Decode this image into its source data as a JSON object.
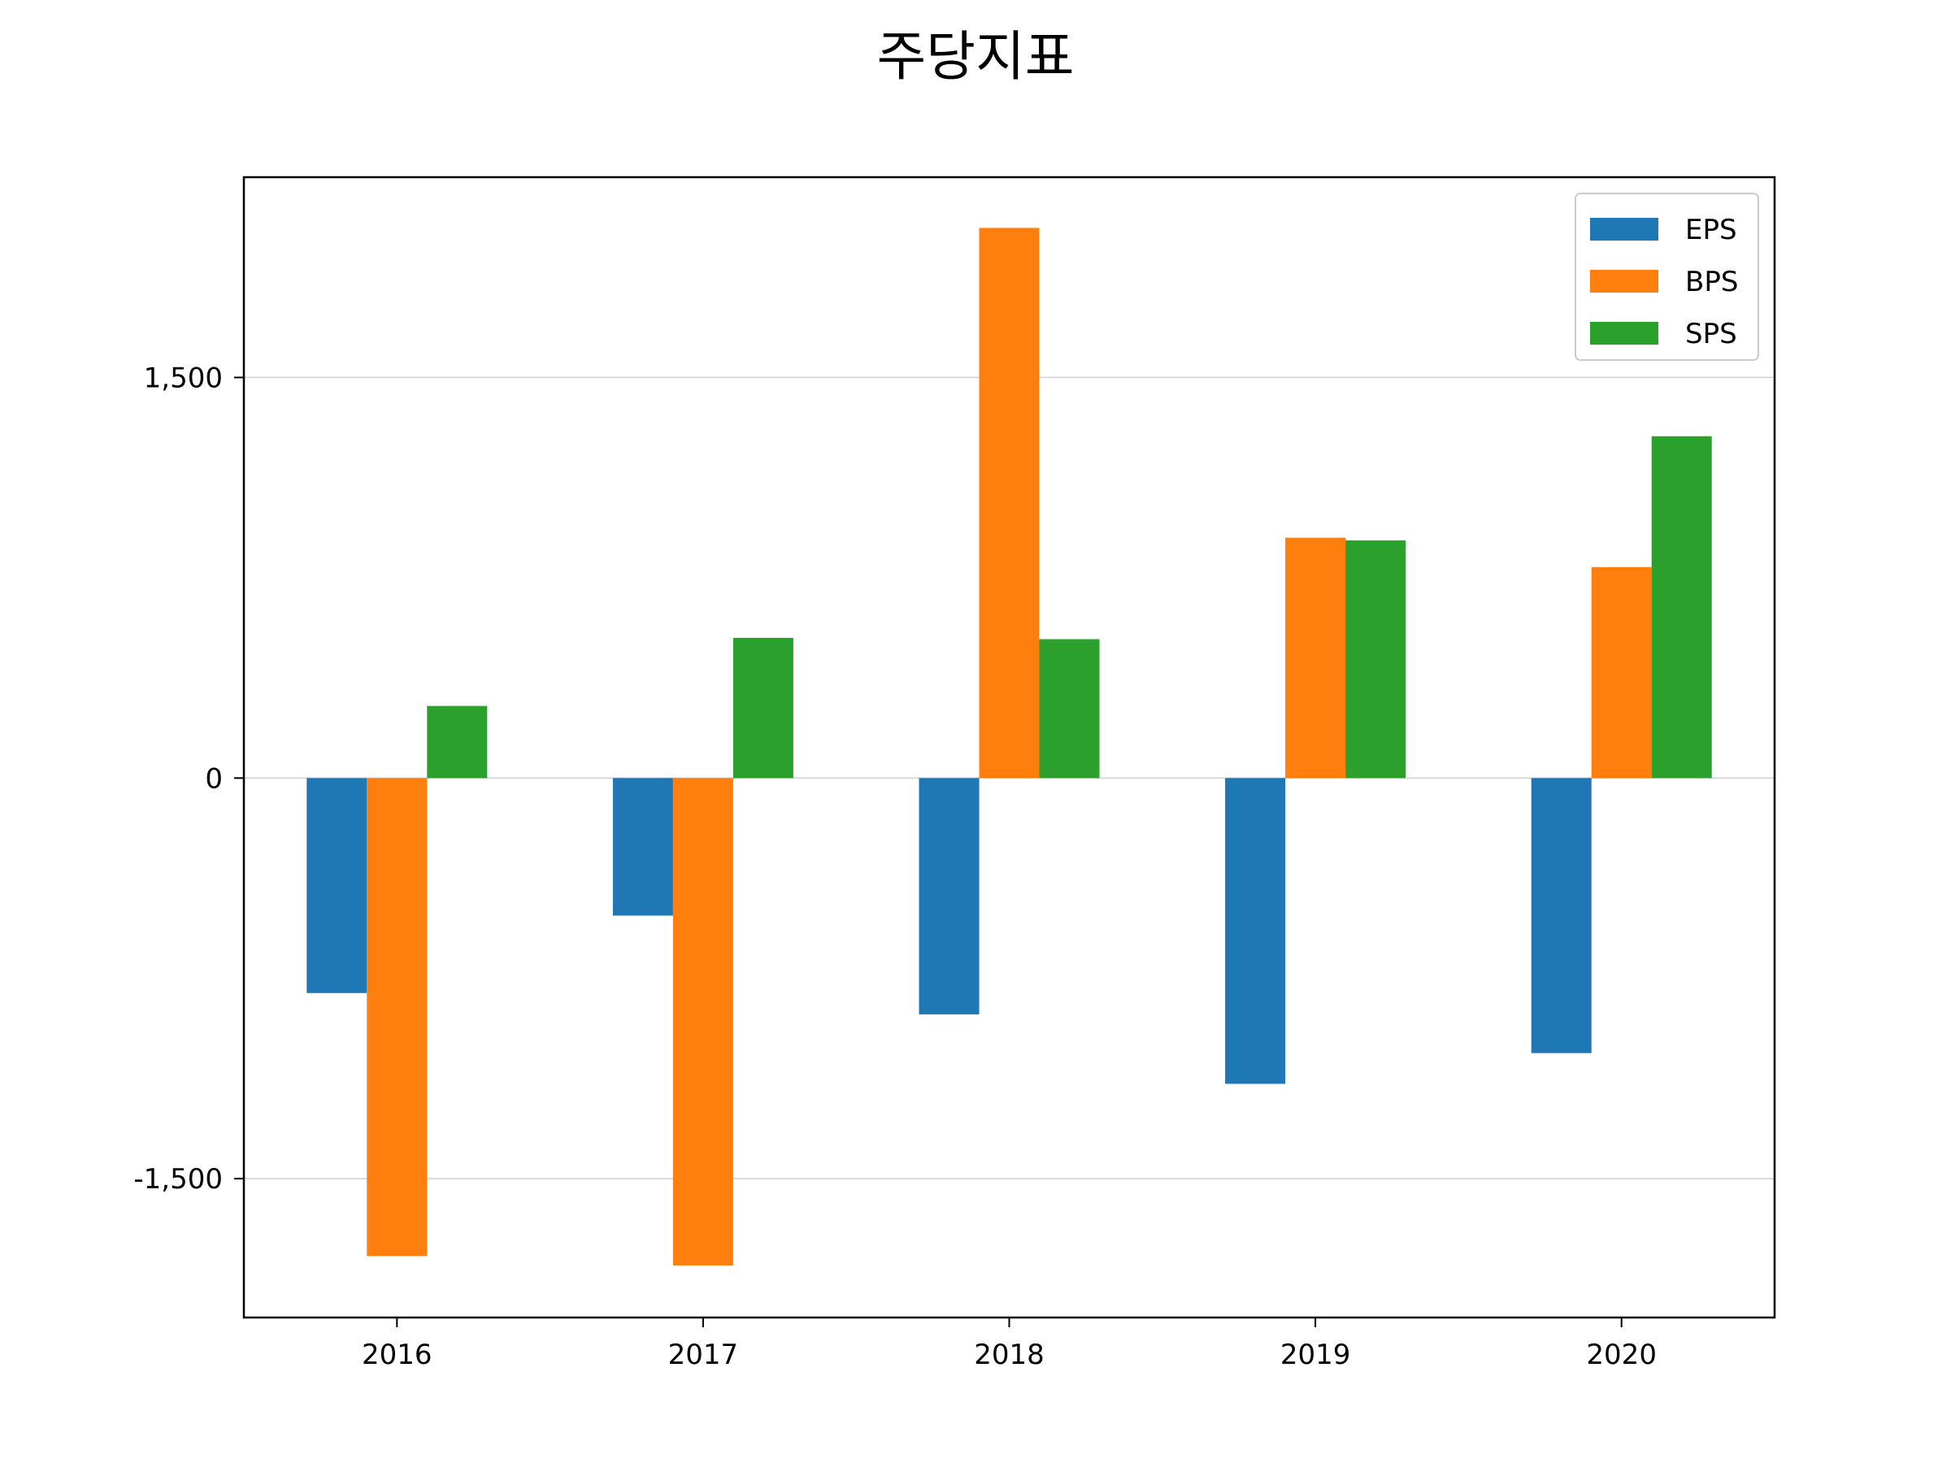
{
  "chart_data": {
    "type": "bar",
    "title": "주당지표",
    "xlabel": "",
    "ylabel": "",
    "categories": [
      "2016",
      "2017",
      "2018",
      "2019",
      "2020"
    ],
    "series": [
      {
        "name": "EPS",
        "color": "#1f77b4",
        "values": [
          -805,
          -515,
          -885,
          -1145,
          -1030
        ]
      },
      {
        "name": "BPS",
        "color": "#ff7f0e",
        "values": [
          -1790,
          -1825,
          2060,
          900,
          790
        ]
      },
      {
        "name": "SPS",
        "color": "#2ca02c",
        "values": [
          270,
          525,
          520,
          890,
          1280
        ]
      }
    ],
    "ylim": [
      -2020,
      2250
    ],
    "yticks": [
      -1500,
      0,
      1500
    ],
    "ytick_labels": [
      "-1,500",
      "0",
      "1,500"
    ],
    "grid": "horizontal",
    "legend_position": "top-right"
  }
}
